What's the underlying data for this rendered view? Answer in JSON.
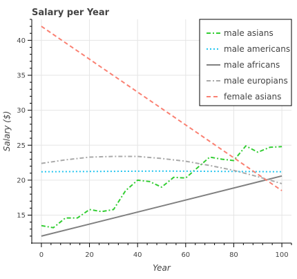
{
  "chart_data": {
    "type": "line",
    "title": "Salary per Year",
    "xlabel": "Year",
    "ylabel": "Salary ($)",
    "xlim": [
      -4,
      104
    ],
    "ylim": [
      11,
      43
    ],
    "xticks": [
      0,
      20,
      40,
      60,
      80,
      100
    ],
    "yticks": [
      15,
      20,
      25,
      30,
      35,
      40
    ],
    "grid": true,
    "legend_position": "top-right",
    "series": [
      {
        "name": "male asians",
        "color": "#32cd32",
        "dash": "dashdot",
        "x": [
          0,
          5,
          10,
          15,
          20,
          25,
          30,
          35,
          40,
          45,
          50,
          55,
          60,
          65,
          70,
          75,
          80,
          85,
          90,
          95,
          100
        ],
        "y": [
          13.5,
          13.2,
          14.6,
          14.6,
          15.8,
          15.5,
          15.8,
          18.5,
          20.0,
          19.8,
          19.0,
          20.4,
          20.3,
          21.8,
          23.3,
          23.0,
          22.8,
          24.9,
          24.0,
          24.7,
          24.8
        ]
      },
      {
        "name": "male americans",
        "color": "#1fc4ef",
        "dash": "dotted",
        "x": [
          0,
          50,
          100
        ],
        "y": [
          21.2,
          21.3,
          21.2
        ]
      },
      {
        "name": "male africans",
        "color": "#808080",
        "dash": "solid",
        "x": [
          0,
          100
        ],
        "y": [
          12.0,
          20.6
        ]
      },
      {
        "name": "male europians",
        "color": "#a9a9a9",
        "dash": "dashdot",
        "x": [
          0,
          10,
          20,
          30,
          40,
          50,
          60,
          70,
          80,
          90,
          100
        ],
        "y": [
          22.4,
          22.9,
          23.3,
          23.4,
          23.4,
          23.1,
          22.7,
          22.1,
          21.4,
          20.5,
          19.5
        ]
      },
      {
        "name": "female asians",
        "color": "#fa8072",
        "dash": "dashed",
        "x": [
          0,
          100
        ],
        "y": [
          42.0,
          18.5
        ]
      }
    ]
  }
}
